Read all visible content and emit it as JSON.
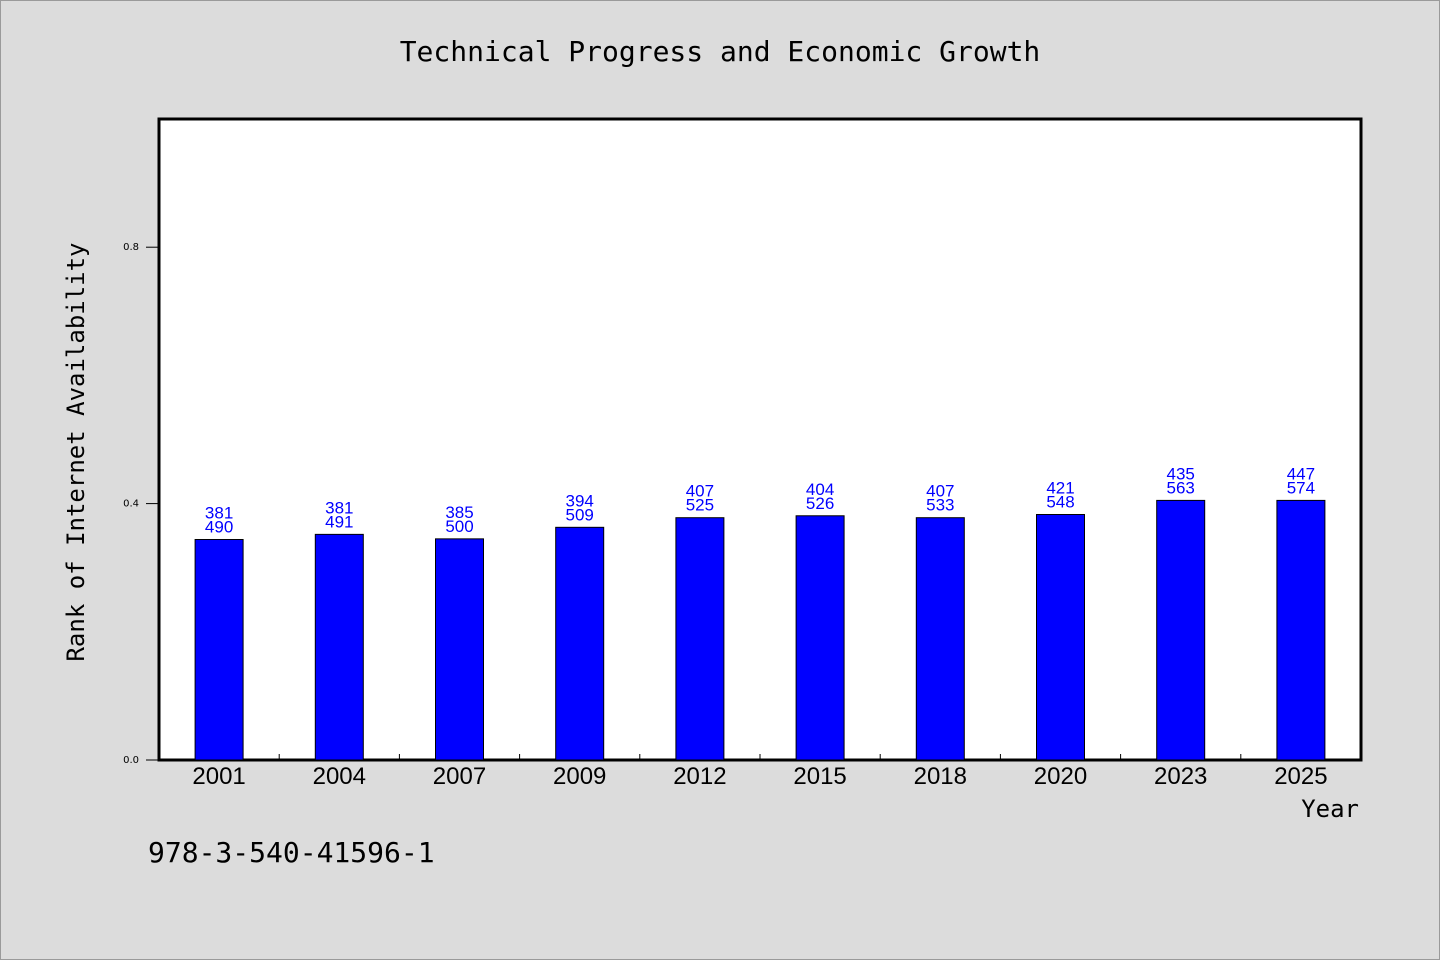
{
  "chart_data": {
    "type": "bar",
    "title": "Technical Progress and Economic Growth",
    "xlabel": "Year",
    "ylabel": "Rank of Internet Availability",
    "categories": [
      "2001",
      "2004",
      "2007",
      "2009",
      "2012",
      "2015",
      "2018",
      "2020",
      "2023",
      "2025"
    ],
    "values": [
      0.344,
      0.352,
      0.345,
      0.363,
      0.378,
      0.381,
      0.378,
      0.383,
      0.405,
      0.405
    ],
    "labels_top": [
      "381",
      "381",
      "385",
      "394",
      "407",
      "404",
      "407",
      "421",
      "435",
      "447"
    ],
    "labels_bottom": [
      "490",
      "491",
      "500",
      "509",
      "525",
      "526",
      "533",
      "548",
      "563",
      "574"
    ],
    "ylim": [
      0,
      1.0
    ],
    "yticks": [
      "0.0",
      "0.4",
      "0.8"
    ],
    "grid": false,
    "colors": {
      "bar": "#0000ff",
      "label": "#0000ff",
      "background": "#dcdcdc",
      "plot": "#ffffff"
    }
  },
  "footnote": "978-3-540-41596-1"
}
